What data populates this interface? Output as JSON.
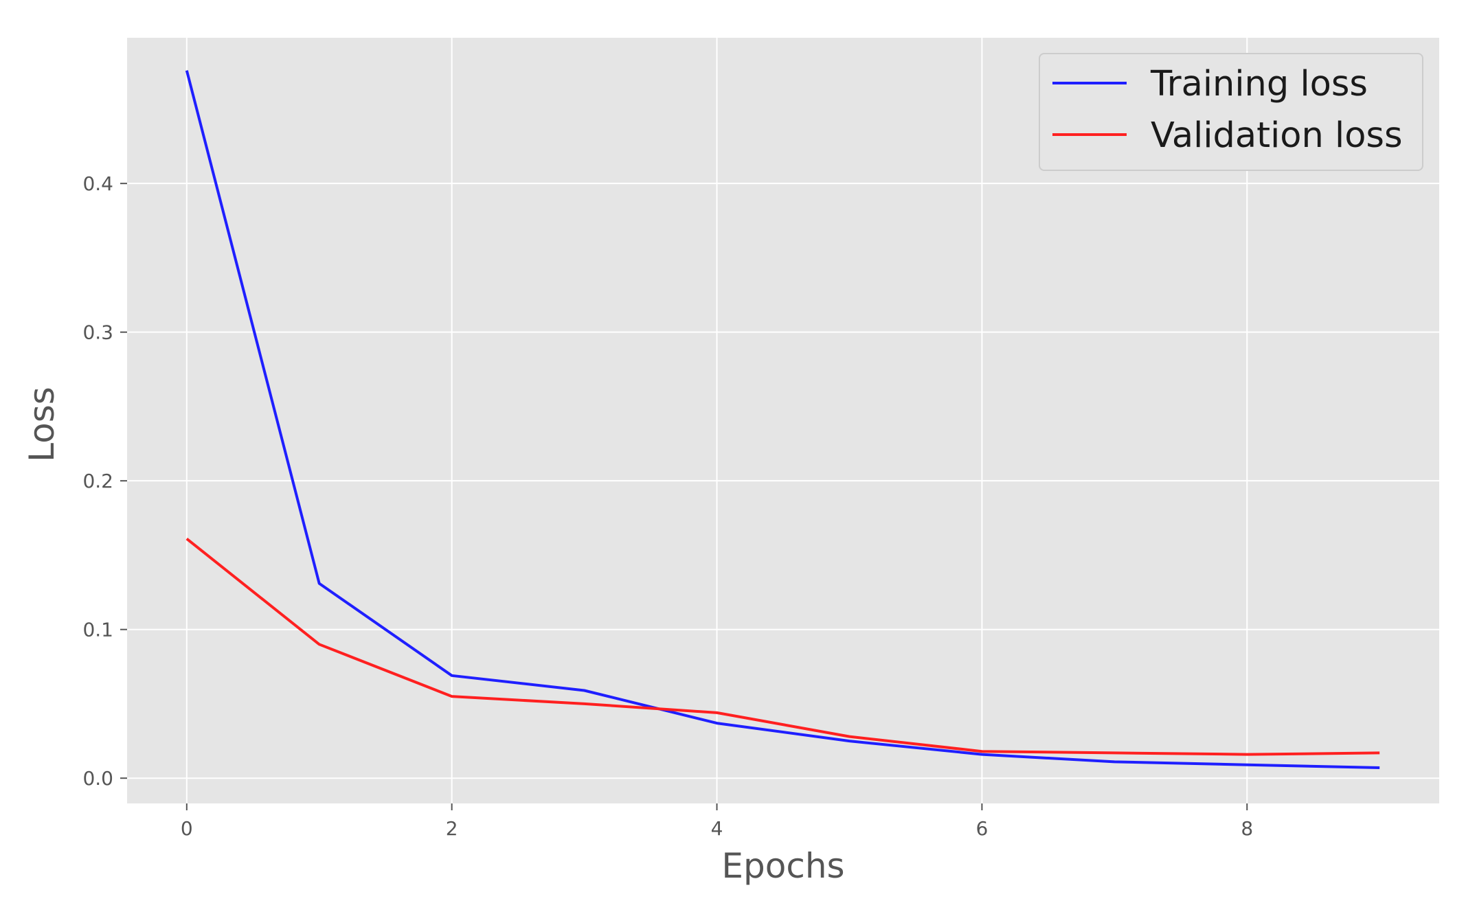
{
  "chart_data": {
    "type": "line",
    "title": "",
    "xlabel": "Epochs",
    "ylabel": "Loss",
    "xlim": [
      -0.45,
      9.45
    ],
    "ylim": [
      -0.017,
      0.498
    ],
    "xticks": [
      0,
      2,
      4,
      6,
      8
    ],
    "xtick_labels": [
      "0",
      "2",
      "4",
      "6",
      "8"
    ],
    "yticks": [
      0.0,
      0.1,
      0.2,
      0.3,
      0.4
    ],
    "ytick_labels": [
      "0.0",
      "0.1",
      "0.2",
      "0.3",
      "0.4"
    ],
    "grid": true,
    "legend_position": "top-right",
    "x": [
      0,
      1,
      2,
      3,
      4,
      5,
      6,
      7,
      8,
      9
    ],
    "series": [
      {
        "name": "Training loss",
        "color": "#1f1fff",
        "values": [
          0.476,
          0.131,
          0.069,
          0.059,
          0.037,
          0.025,
          0.016,
          0.011,
          0.009,
          0.007
        ]
      },
      {
        "name": "Validation loss",
        "color": "#ff2020",
        "values": [
          0.161,
          0.09,
          0.055,
          0.05,
          0.044,
          0.028,
          0.018,
          0.017,
          0.016,
          0.017
        ]
      }
    ],
    "background_color": "#e5e5e5",
    "grid_color": "#ffffff"
  }
}
